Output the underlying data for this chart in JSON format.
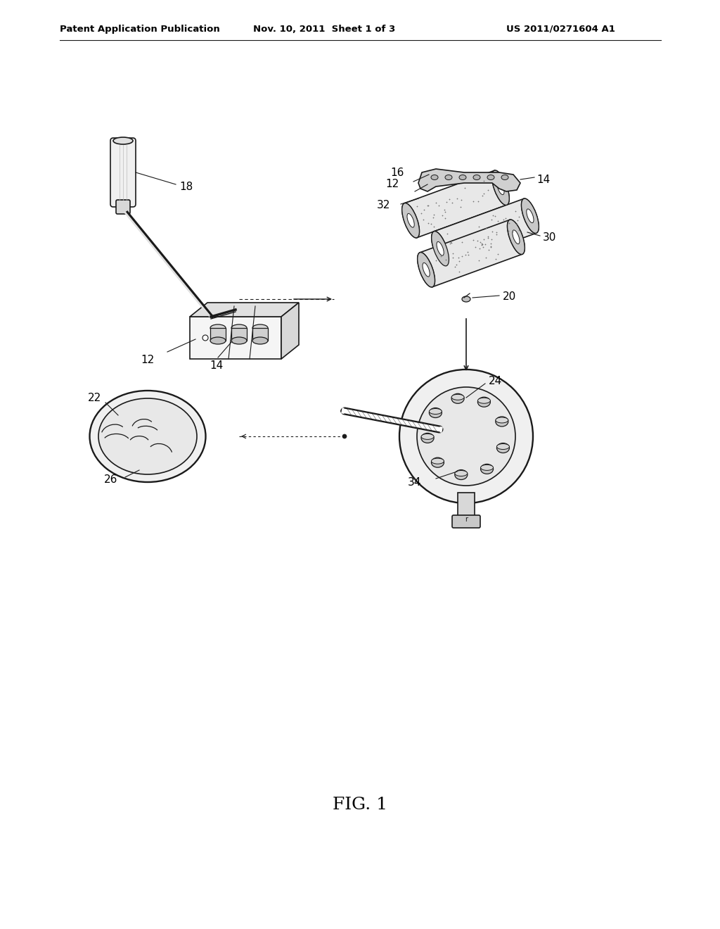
{
  "bg_color": "#ffffff",
  "header_left": "Patent Application Publication",
  "header_center": "Nov. 10, 2011  Sheet 1 of 3",
  "header_right": "US 2011/0271604 A1",
  "fig_label": "FIG. 1",
  "header_fontsize": 9.5,
  "fig_label_fontsize": 18,
  "label_fontsize": 11,
  "line_color": "#1a1a1a",
  "arrow_dashed_color": "#555555"
}
